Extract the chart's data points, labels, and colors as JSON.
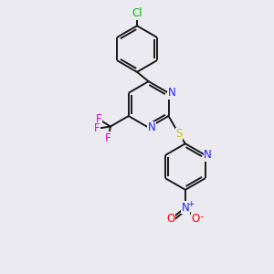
{
  "background_color": "#eaeaf0",
  "bond_color": "#1a1a1a",
  "atom_colors": {
    "N": "#2020ff",
    "S": "#c8c800",
    "F": "#e000e0",
    "Cl": "#00bb00",
    "O": "#ff0000",
    "C": "#000000"
  },
  "figsize": [
    3.0,
    3.0
  ],
  "dpi": 100
}
